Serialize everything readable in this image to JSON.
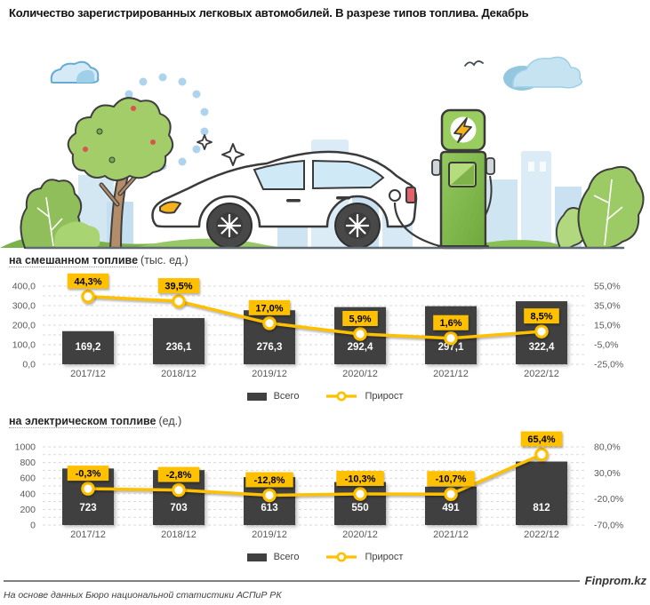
{
  "header": {
    "title": "Количество зарегистрированных легковых автомобилей. В разрезе типов топлива. Декабрь"
  },
  "colors": {
    "bar": "#404040",
    "line": "#FFC000",
    "callout_bg": "#FFC000",
    "callout_text": "#000000",
    "bar_label": "#FFFFFF",
    "axis_text": "#595959",
    "grid": "#D9D9D9"
  },
  "legend": {
    "bar_label": "Всего",
    "line_label": "Прирост"
  },
  "chart_data": [
    {
      "type": "bar+line",
      "title": "на смешанном топливе",
      "unit": "(тыс. ед.)",
      "categories": [
        "2017/12",
        "2018/12",
        "2019/12",
        "2020/12",
        "2021/12",
        "2022/12"
      ],
      "series": [
        {
          "name": "Всего",
          "type": "bar",
          "values": [
            169.2,
            236.1,
            276.3,
            292.4,
            297.1,
            322.4
          ],
          "labels": [
            "169,2",
            "236,1",
            "276,3",
            "292,4",
            "297,1",
            "322,4"
          ]
        },
        {
          "name": "Прирост",
          "type": "line",
          "values": [
            44.3,
            39.5,
            17.0,
            5.9,
            1.6,
            8.5
          ],
          "labels": [
            "44,3%",
            "39,5%",
            "17,0%",
            "5,9%",
            "1,6%",
            "8,5%"
          ]
        }
      ],
      "left_axis": {
        "min": 0,
        "max": 400,
        "ticks_top_to_bottom": [
          "400,0",
          "300,0",
          "200,0",
          "100,0",
          "0,0"
        ]
      },
      "right_axis": {
        "min": -25,
        "max": 55,
        "ticks_top_to_bottom": [
          "55,0%",
          "35,0%",
          "15,0%",
          "-5,0%",
          "-25,0%"
        ]
      },
      "grid_divisions": 8,
      "legend_position": "bottom-center",
      "grid": "on"
    },
    {
      "type": "bar+line",
      "title": "на электрическом топливе",
      "unit": "(ед.)",
      "categories": [
        "2017/12",
        "2018/12",
        "2019/12",
        "2020/12",
        "2021/12",
        "2022/12"
      ],
      "series": [
        {
          "name": "Всего",
          "type": "bar",
          "values": [
            723,
            703,
            613,
            550,
            491,
            812
          ],
          "labels": [
            "723",
            "703",
            "613",
            "550",
            "491",
            "812"
          ]
        },
        {
          "name": "Прирост",
          "type": "line",
          "values": [
            -0.3,
            -2.8,
            -12.8,
            -10.3,
            -10.7,
            65.4
          ],
          "labels": [
            "-0,3%",
            "-2,8%",
            "-12,8%",
            "-10,3%",
            "-10,7%",
            "65,4%"
          ]
        }
      ],
      "left_axis": {
        "min": 0,
        "max": 1000,
        "ticks_top_to_bottom": [
          "1000",
          "800",
          "600",
          "400",
          "200",
          "0"
        ]
      },
      "right_axis": {
        "min": -70,
        "max": 80,
        "ticks_top_to_bottom": [
          "80,0%",
          "30,0%",
          "-20,0%",
          "-70,0%"
        ]
      },
      "grid_divisions": 10,
      "legend_position": "bottom-center",
      "grid": "on"
    }
  ],
  "footer": {
    "brand": "Finprom.kz",
    "source": "На основе данных Бюро национальной статистики АСПиР РК"
  }
}
